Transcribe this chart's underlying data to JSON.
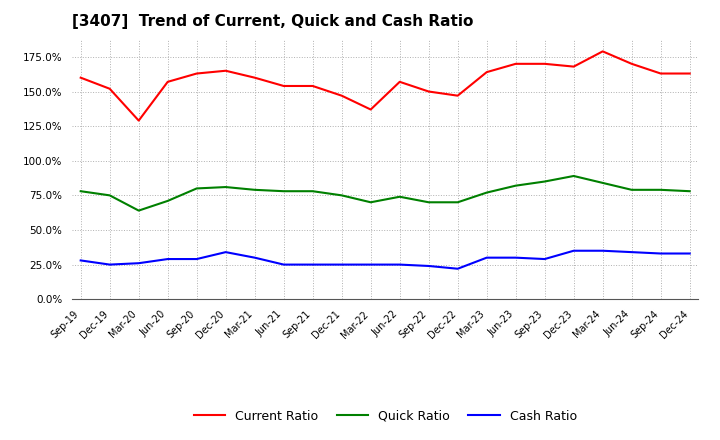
{
  "title": "[3407]  Trend of Current, Quick and Cash Ratio",
  "x_labels": [
    "Sep-19",
    "Dec-19",
    "Mar-20",
    "Jun-20",
    "Sep-20",
    "Dec-20",
    "Mar-21",
    "Jun-21",
    "Sep-21",
    "Dec-21",
    "Mar-22",
    "Jun-22",
    "Sep-22",
    "Dec-22",
    "Mar-23",
    "Jun-23",
    "Sep-23",
    "Dec-23",
    "Mar-24",
    "Jun-24",
    "Sep-24",
    "Dec-24"
  ],
  "current_ratio": [
    1.6,
    1.52,
    1.29,
    1.57,
    1.63,
    1.65,
    1.6,
    1.54,
    1.54,
    1.47,
    1.37,
    1.57,
    1.5,
    1.47,
    1.64,
    1.7,
    1.7,
    1.68,
    1.79,
    1.7,
    1.63,
    1.63
  ],
  "quick_ratio": [
    0.78,
    0.75,
    0.64,
    0.71,
    0.8,
    0.81,
    0.79,
    0.78,
    0.78,
    0.75,
    0.7,
    0.74,
    0.7,
    0.7,
    0.77,
    0.82,
    0.85,
    0.89,
    0.84,
    0.79,
    0.79,
    0.78
  ],
  "cash_ratio": [
    0.28,
    0.25,
    0.26,
    0.29,
    0.29,
    0.34,
    0.3,
    0.25,
    0.25,
    0.25,
    0.25,
    0.25,
    0.24,
    0.22,
    0.3,
    0.3,
    0.29,
    0.35,
    0.35,
    0.34,
    0.33,
    0.33
  ],
  "current_color": "#ff0000",
  "quick_color": "#008000",
  "cash_color": "#0000ff",
  "bg_color": "#ffffff",
  "plot_bg_color": "#ffffff",
  "grid_color": "#b0b0b0",
  "ylim": [
    0.0,
    1.875
  ],
  "yticks": [
    0.0,
    0.25,
    0.5,
    0.75,
    1.0,
    1.25,
    1.5,
    1.75
  ],
  "ytick_labels": [
    "0.0%",
    "25.0%",
    "50.0%",
    "75.0%",
    "100.0%",
    "125.0%",
    "150.0%",
    "175.0%"
  ]
}
